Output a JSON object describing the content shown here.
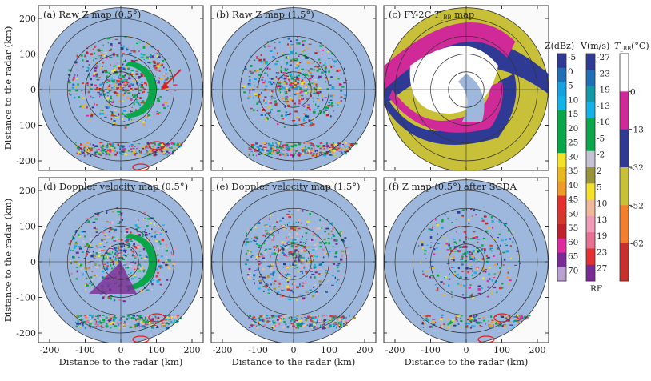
{
  "panels": [
    {
      "label": "(a) Raw Z map (0.5°)",
      "kind": "z"
    },
    {
      "label": "(b) Raw Z map (1.5°)",
      "kind": "z2"
    },
    {
      "label": "(c) FY-2C T_BB map",
      "kind": "tbb"
    },
    {
      "label": "(d) Doppler velocity map (0.5°)",
      "kind": "v"
    },
    {
      "label": "(e) Doppler velocity map (1.5°)",
      "kind": "v2"
    },
    {
      "label": "(f) Z map (0.5°) after SCDA",
      "kind": "z3"
    }
  ],
  "axes": {
    "xlabel": "Distance to the radar (km)",
    "ylabel": "Distance to the radar (km)",
    "xticks": [
      -200,
      -100,
      0,
      100,
      200
    ],
    "yticks": [
      200,
      100,
      0,
      -100,
      -200
    ]
  },
  "colorbars": [
    {
      "title": "Z(dBz)",
      "colors": [
        "#2e3a94",
        "#1f6fb8",
        "#14a3e0",
        "#12b3e8",
        "#0aa64a",
        "#0aa64a",
        "#0aa64a",
        "#f4e22a",
        "#e8b820",
        "#f09a2a",
        "#e63030",
        "#d8382c",
        "#c0202a",
        "#e02aa0",
        "#7a2a94",
        "#b8a0d0"
      ],
      "labels": [
        "-5",
        "0",
        "5",
        "10",
        "15",
        "20",
        "25",
        "30",
        "35",
        "40",
        "45",
        "50",
        "55",
        "60",
        "65",
        "70"
      ]
    },
    {
      "title": "V(m/s)",
      "colors": [
        "#2e3a94",
        "#1f6fb8",
        "#0f9aa8",
        "#12b3e8",
        "#0aa64a",
        "#0aa64a",
        "#c8c0d4",
        "#9a9438",
        "#f4e22a",
        "#f0b898",
        "#f09ab8",
        "#e87090",
        "#e63030",
        "#7a2a94"
      ],
      "labels": [
        "-27",
        "-23",
        "-19",
        "-13",
        "-10",
        "-5",
        "-2",
        "2",
        "5",
        "10",
        "13",
        "19",
        "23",
        "27"
      ],
      "extra": "RF"
    },
    {
      "title": "T_BB(°C)",
      "colors": [
        "#ffffff",
        "#d02a98",
        "#2e3a94",
        "#c8c038",
        "#f08030",
        "#c83030"
      ],
      "labels": [
        "0",
        "-13",
        "-32",
        "-52",
        "-62"
      ]
    }
  ],
  "annotations": {
    "arrow_color": "#e02020",
    "ellipse_color": "#e02020",
    "disc_color": "#9db8dc"
  }
}
